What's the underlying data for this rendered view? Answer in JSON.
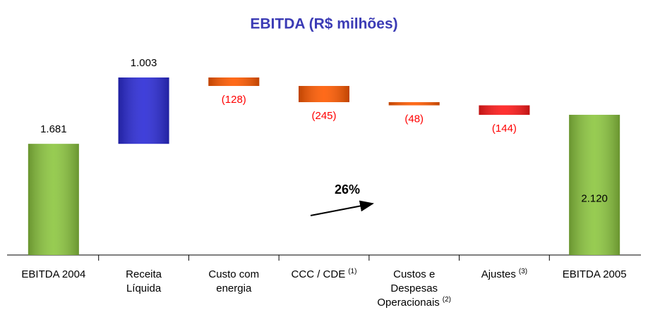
{
  "chart_data": {
    "type": "waterfall",
    "title": "EBITDA (R$ milhões)",
    "categories": [
      "EBITDA 2004",
      "Receita\nLíquida",
      "Custo com\nenergia",
      "CCC / CDE",
      "Custos e\nDespesas\nOperacionais",
      "Ajustes",
      "EBITDA 2005"
    ],
    "category_notes": [
      null,
      null,
      null,
      "(1)",
      "(2)",
      "(3)",
      null
    ],
    "values": [
      1681,
      1003,
      -128,
      -245,
      -48,
      -144,
      2120
    ],
    "value_labels": [
      "1.681",
      "1.003",
      "(128)",
      "(245)",
      "(48)",
      "(144)",
      "2.120"
    ],
    "totals": [
      true,
      false,
      false,
      false,
      false,
      false,
      true
    ],
    "colors": [
      "#8cc63f",
      "#2b2bd6",
      "#ff5a00",
      "#ff5a00",
      "#ff5a00",
      "#ff1a1a",
      "#8cc63f"
    ],
    "annotation": "26%"
  }
}
